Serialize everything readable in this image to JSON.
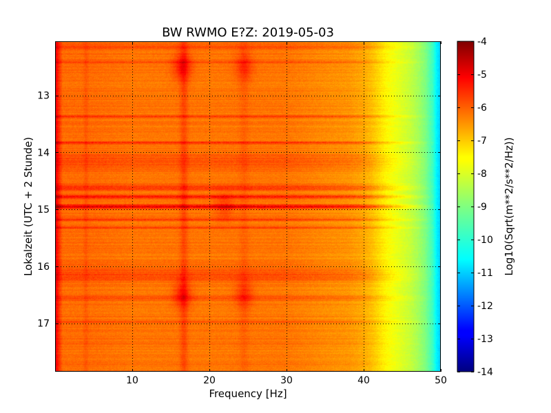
{
  "chart_data": {
    "type": "heatmap",
    "title": "BW RWMO E?Z: 2019-05-03",
    "xlabel": "Frequency [Hz]",
    "ylabel": "Lokalzeit (UTC + 2 Stunde)",
    "xlim": [
      0,
      50
    ],
    "ylim": [
      17.85,
      12.05
    ],
    "y_inverted": true,
    "grid": true,
    "grid_style": "dotted",
    "x_ticks": [
      10,
      20,
      30,
      40,
      50
    ],
    "y_ticks": [
      13,
      14,
      15,
      16,
      17
    ],
    "colormap": "jet",
    "colorbar": {
      "label": "Log10(Sqrt(m**2/s**2/Hz))",
      "range": [
        -14,
        -4
      ],
      "ticks": [
        -4,
        -5,
        -6,
        -7,
        -8,
        -9,
        -10,
        -11,
        -12,
        -13,
        -14
      ]
    },
    "baseline_profile": {
      "frequency_hz": [
        0,
        0.5,
        1,
        2,
        5,
        10,
        15,
        20,
        25,
        30,
        35,
        38,
        40,
        41,
        42,
        43,
        44,
        45,
        46,
        47,
        48,
        49,
        49.5,
        50
      ],
      "log10_amplitude": [
        -5.0,
        -5.7,
        -6.3,
        -6.3,
        -6.3,
        -6.4,
        -6.4,
        -6.4,
        -6.4,
        -6.4,
        -6.6,
        -6.7,
        -6.9,
        -7.1,
        -7.4,
        -7.7,
        -7.9,
        -8.1,
        -8.3,
        -8.6,
        -9.0,
        -9.7,
        -10.4,
        -10.7
      ]
    },
    "loud_time_bands": [
      {
        "hour": 12.15,
        "width_h": 0.1,
        "delta_log10": 0.4
      },
      {
        "hour": 12.42,
        "width_h": 0.06,
        "delta_log10": 0.5
      },
      {
        "hour": 13.37,
        "width_h": 0.05,
        "delta_log10": 0.7
      },
      {
        "hour": 13.83,
        "width_h": 0.05,
        "delta_log10": 0.8
      },
      {
        "hour": 14.15,
        "width_h": 0.35,
        "delta_log10": 0.4
      },
      {
        "hour": 14.62,
        "width_h": 0.1,
        "delta_log10": 0.8
      },
      {
        "hour": 14.78,
        "width_h": 0.07,
        "delta_log10": 1.0
      },
      {
        "hour": 14.95,
        "width_h": 0.07,
        "delta_log10": 1.6
      },
      {
        "hour": 15.18,
        "width_h": 0.06,
        "delta_log10": 0.6
      },
      {
        "hour": 15.32,
        "width_h": 0.06,
        "delta_log10": 0.6
      },
      {
        "hour": 16.15,
        "width_h": 0.25,
        "delta_log10": 0.5
      },
      {
        "hour": 16.55,
        "width_h": 0.12,
        "delta_log10": 0.4
      },
      {
        "hour": 16.98,
        "width_h": 0.04,
        "delta_log10": 0.5
      }
    ],
    "loud_frequency_lines": [
      {
        "frequency_hz": 16.7,
        "width_hz": 0.5,
        "delta_log10": 0.45
      },
      {
        "frequency_hz": 24.5,
        "width_hz": 0.6,
        "delta_log10": 0.2
      },
      {
        "frequency_hz": 4.0,
        "width_hz": 0.3,
        "delta_log10": 0.2
      }
    ],
    "hot_spots": [
      {
        "frequency_hz": 16.5,
        "hour": 12.5,
        "delta_log10": 0.9
      },
      {
        "frequency_hz": 24.5,
        "hour": 12.5,
        "delta_log10": 0.6
      },
      {
        "frequency_hz": 16.5,
        "hour": 16.5,
        "delta_log10": 0.8
      },
      {
        "frequency_hz": 24.5,
        "hour": 16.5,
        "delta_log10": 0.6
      },
      {
        "frequency_hz": 22.0,
        "hour": 14.95,
        "delta_log10": 0.5
      }
    ]
  }
}
